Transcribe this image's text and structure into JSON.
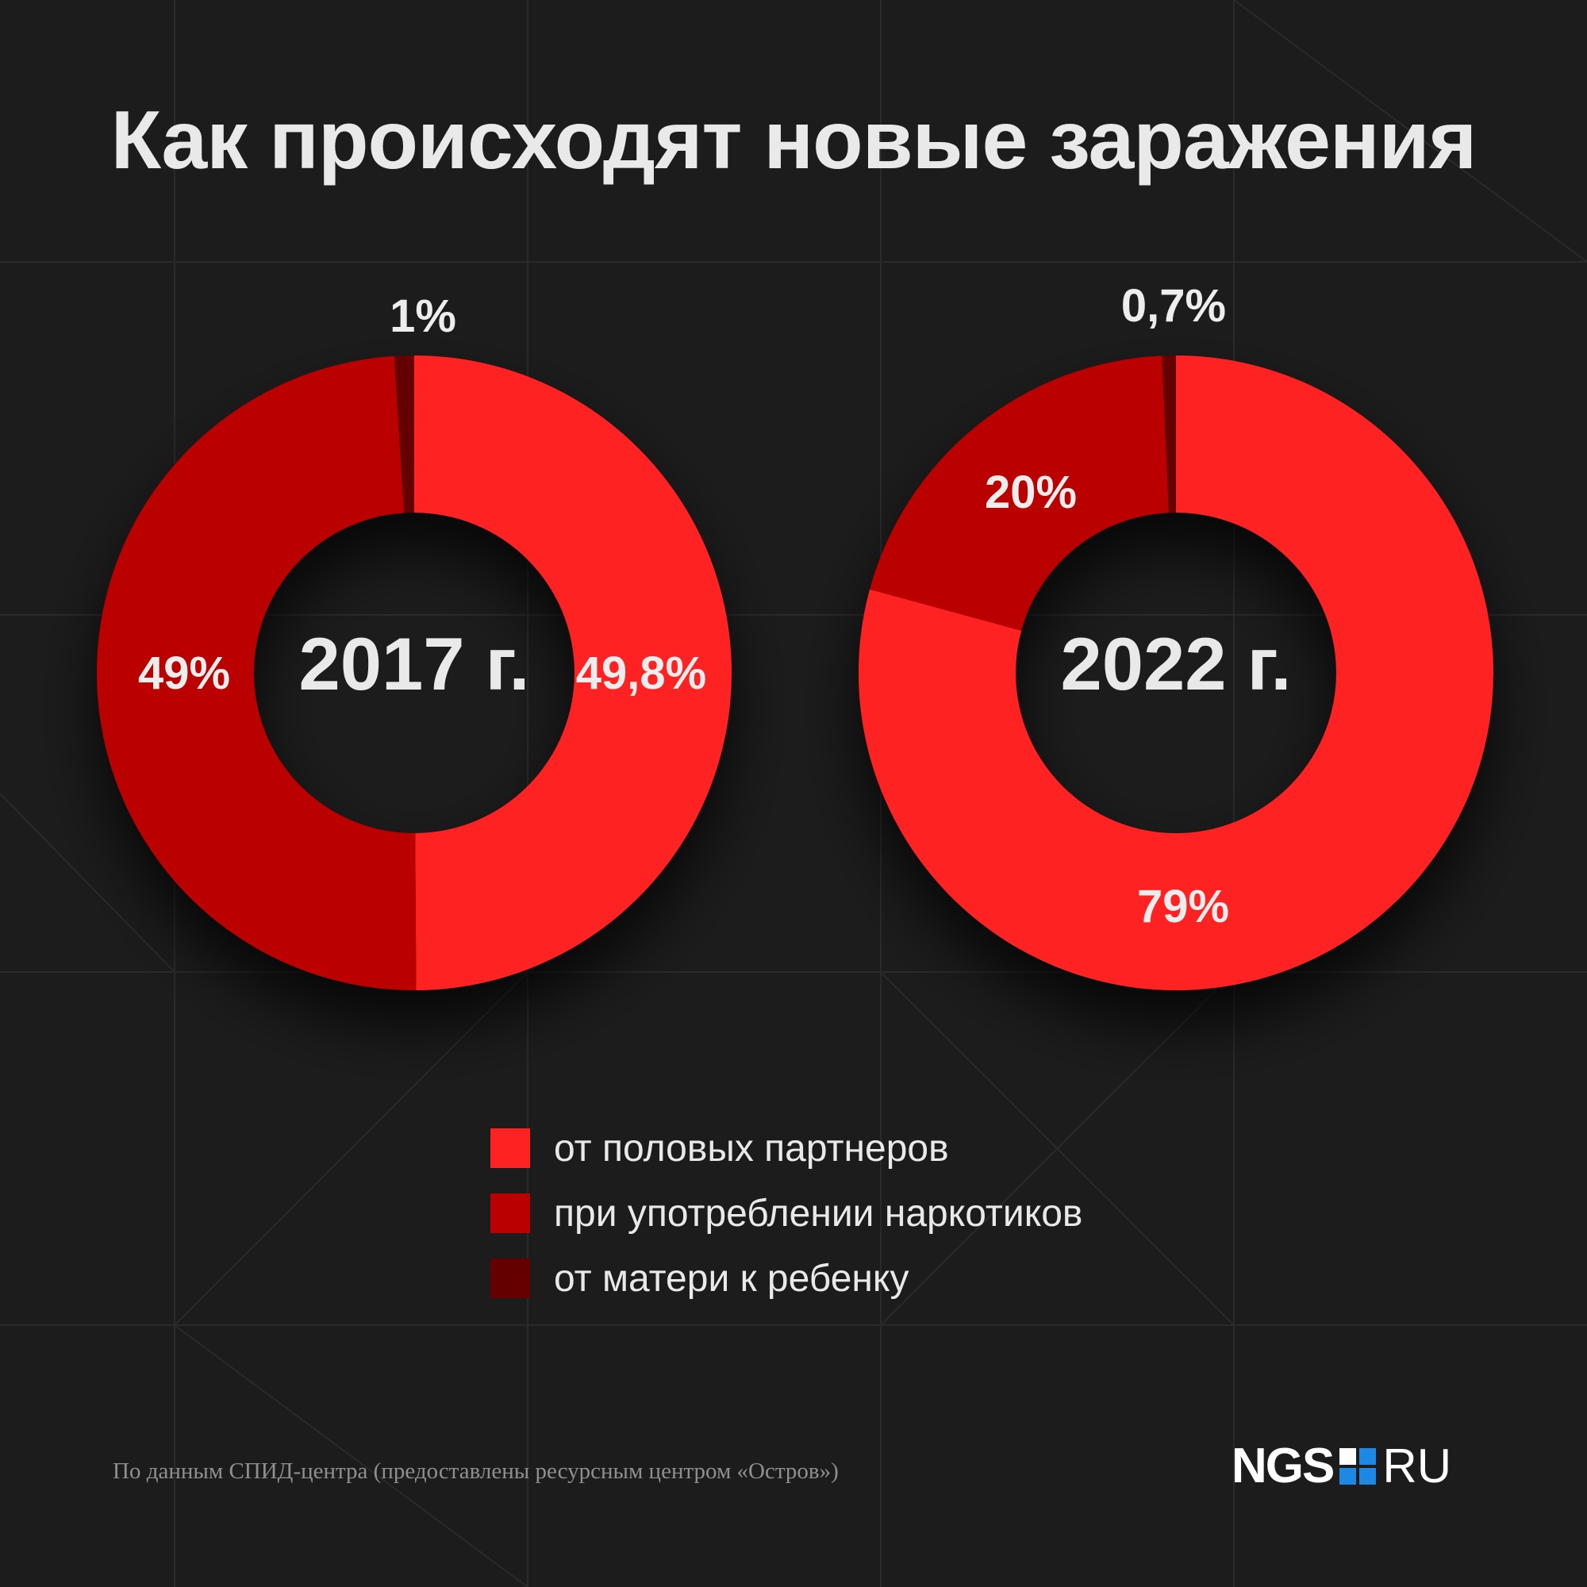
{
  "title": "Как происходят новые заражения",
  "colors": {
    "background": "#1c1c1d",
    "sexual": "#ff2222",
    "drugs": "#bb0000",
    "mother_child": "#650000",
    "text": "#e9e9e9",
    "logo_blue": "#1e88e5"
  },
  "legend": [
    {
      "label": "от половых партнеров",
      "color": "#ff2222"
    },
    {
      "label": "при употреблении наркотиков",
      "color": "#bb0000"
    },
    {
      "label": "от матери к ребенку",
      "color": "#650000"
    }
  ],
  "source": "По данным СПИД-центра (предоставлены ресурсным центром «Остров»)",
  "logo": {
    "left": "NGS",
    "right": "RU",
    "icon": "ngs-square-logo-icon"
  },
  "chart_data": [
    {
      "type": "pie",
      "variant": "donut",
      "center_label": "2017 г.",
      "categories": [
        "от половых партнеров",
        "при употреблении наркотиков",
        "от матери к ребенку"
      ],
      "values": [
        49.8,
        49,
        1
      ],
      "labels": [
        "49,8%",
        "49%",
        "1%"
      ],
      "colors": [
        "#ff2222",
        "#bb0000",
        "#650000"
      ]
    },
    {
      "type": "pie",
      "variant": "donut",
      "center_label": "2022 г.",
      "categories": [
        "от половых партнеров",
        "при употреблении наркотиков",
        "от матери к ребенку"
      ],
      "values": [
        79,
        20,
        0.7
      ],
      "labels": [
        "79%",
        "20%",
        "0,7%"
      ],
      "colors": [
        "#ff2222",
        "#bb0000",
        "#650000"
      ]
    }
  ]
}
